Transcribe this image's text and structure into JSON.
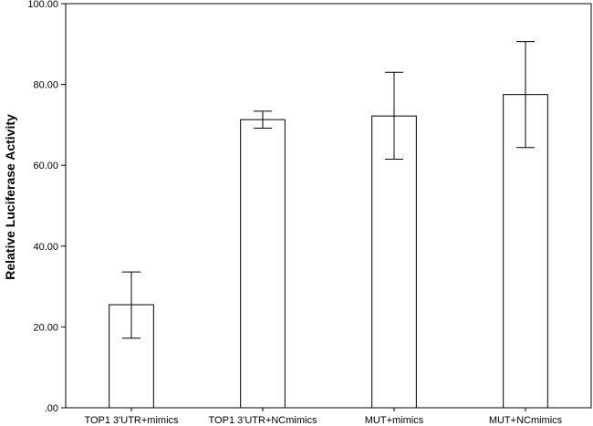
{
  "chart_data": {
    "type": "bar",
    "title": "",
    "xlabel": "",
    "ylabel": "Relative Luciferase Activity",
    "categories": [
      "TOP1 3'UTR+mimics",
      "TOP1 3'UTR+NCmimics",
      "MUT+mimics",
      "MUT+NCmimics"
    ],
    "values": [
      25.5,
      71.3,
      72.2,
      77.5
    ],
    "error_low": [
      17.2,
      69.2,
      61.5,
      64.4
    ],
    "error_high": [
      33.6,
      73.4,
      83.0,
      90.6
    ],
    "ylim": [
      0,
      100
    ],
    "yticks": [
      0,
      20,
      40,
      60,
      80,
      100
    ],
    "ytick_labels": [
      ".00",
      "20.00",
      "40.00",
      "60.00",
      "80.00",
      "100.00"
    ],
    "grid": false,
    "legend": "none",
    "colors": {
      "bar_fill": "#ffffff",
      "bar_stroke": "#000000",
      "error_bar": "#000000",
      "frame": "#000000"
    }
  }
}
